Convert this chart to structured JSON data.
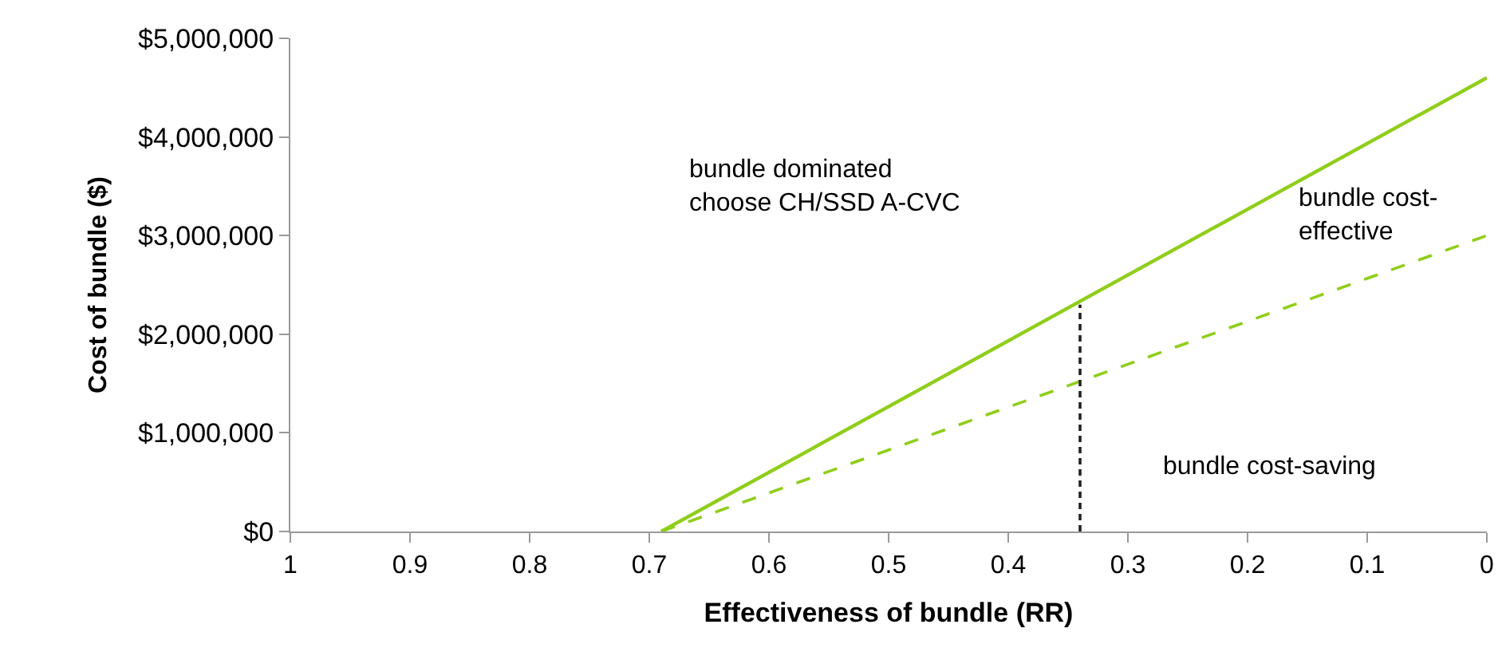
{
  "chart_data": {
    "type": "line",
    "xlabel": "Effectiveness of bundle (RR)",
    "ylabel": "Cost of bundle ($)",
    "xlim": [
      1,
      0
    ],
    "xticks": [
      1,
      0.9,
      0.8,
      0.7,
      0.6,
      0.5,
      0.4,
      0.3,
      0.2,
      0.1,
      0
    ],
    "ylim": [
      0,
      5000000
    ],
    "yticks": [
      {
        "value": 0,
        "label": "$0"
      },
      {
        "value": 1000000,
        "label": "$1,000,000"
      },
      {
        "value": 2000000,
        "label": "$2,000,000"
      },
      {
        "value": 3000000,
        "label": "$3,000,000"
      },
      {
        "value": 4000000,
        "label": "$4,000,000"
      },
      {
        "value": 5000000,
        "label": "$5,000,000"
      }
    ],
    "grid": false,
    "legend": false,
    "marker": "none",
    "series": [
      {
        "x": [
          0.69,
          0
        ],
        "values": [
          0,
          4600000
        ],
        "color": "#8fce1a",
        "line_style": "solid"
      },
      {
        "x": [
          0.69,
          0
        ],
        "values": [
          0,
          3000000
        ],
        "color": "#8fce1a",
        "line_style": "dashed"
      },
      {
        "x": [
          0.34,
          0.34
        ],
        "values": [
          0,
          2300000
        ],
        "color": "#222222",
        "line_style": "dashed"
      }
    ],
    "annotations": [
      "bundle dominated\nchoose CH/SSD A-CVC",
      "bundle cost-\neffective",
      "bundle cost-saving"
    ]
  }
}
